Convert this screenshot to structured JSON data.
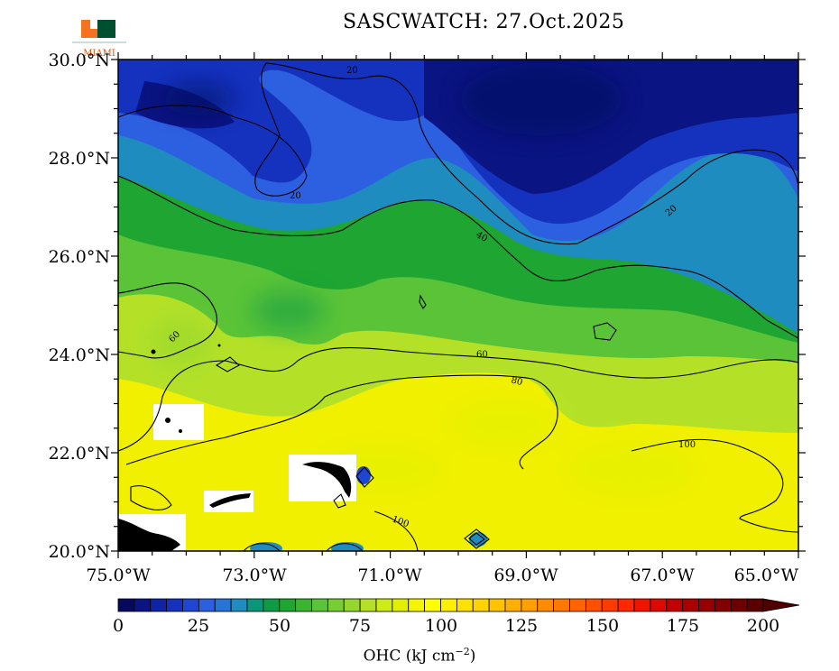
{
  "title": "SASCWATCH: 27.Oct.2025",
  "logo": {
    "name": "University of Miami U logo",
    "text": "MIAMI",
    "colors": {
      "orange": "#f47321",
      "green": "#005030"
    }
  },
  "map": {
    "lat_range": [
      20,
      30
    ],
    "lon_range": [
      -75,
      -65
    ],
    "lat_ticks": [
      "20.0°N",
      "22.0°N",
      "24.0°N",
      "26.0°N",
      "28.0°N",
      "30.0°N"
    ],
    "lon_ticks": [
      "75.0°W",
      "73.0°W",
      "71.0°W",
      "69.0°W",
      "67.0°W",
      "65.0°W"
    ],
    "contour_labels": [
      "20",
      "20",
      "20",
      "40",
      "60",
      "60",
      "80",
      "100",
      "100"
    ]
  },
  "colorbar": {
    "ticks": [
      "0",
      "25",
      "50",
      "75",
      "100",
      "125",
      "150",
      "175",
      "200"
    ],
    "label": "OHC (kJ cm",
    "label_sup": "−2",
    "label_end": ")",
    "colors": [
      "#050a5c",
      "#0a1482",
      "#0f23a5",
      "#1432be",
      "#1e46d2",
      "#2d5fe1",
      "#2873d7",
      "#1e8cbe",
      "#0a9678",
      "#0f9b46",
      "#1ea532",
      "#3cb432",
      "#5ac337",
      "#78cd32",
      "#96d72d",
      "#b4e128",
      "#cdeb14",
      "#e1f000",
      "#f5f500",
      "#ffff00",
      "#fff000",
      "#ffe100",
      "#ffd200",
      "#ffc300",
      "#ffaf00",
      "#ffa000",
      "#ff8c00",
      "#ff7800",
      "#ff6400",
      "#ff5000",
      "#ff3c00",
      "#ff2800",
      "#f01400",
      "#dc0a00",
      "#c30000",
      "#aa0000",
      "#960000",
      "#820000",
      "#6e0000",
      "#5a0000"
    ]
  }
}
